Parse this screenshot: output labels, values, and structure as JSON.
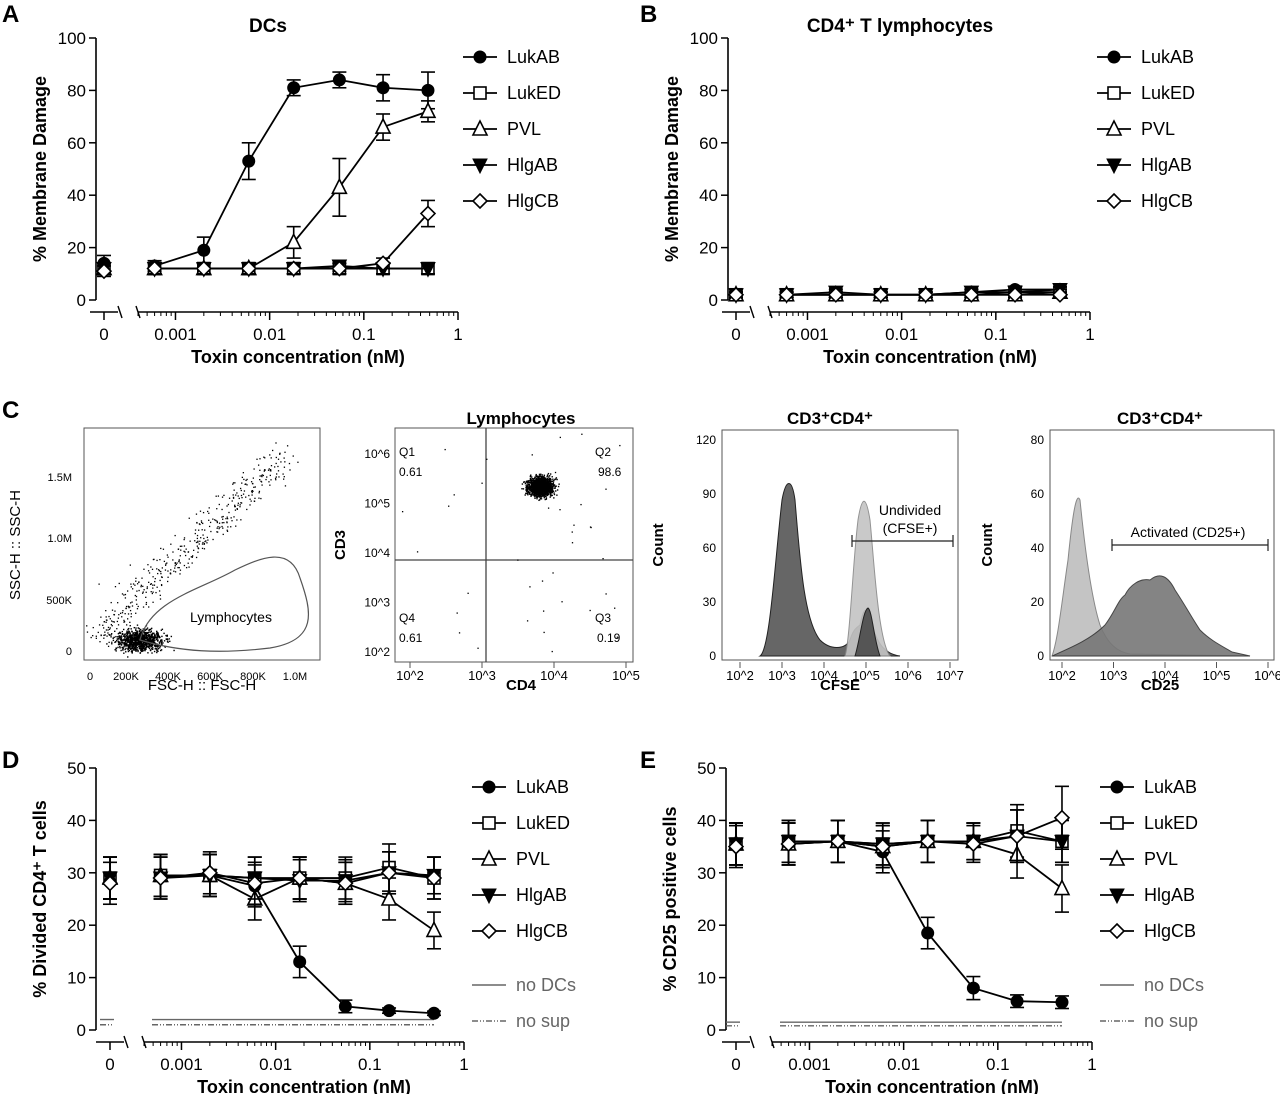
{
  "panel_labels": {
    "A": "A",
    "B": "B",
    "C": "C",
    "D": "D",
    "E": "E"
  },
  "chart_data": [
    {
      "id": "A",
      "type": "line",
      "title": "DCs",
      "xlabel": "Toxin concentration (nM)",
      "ylabel": "% Membrane Damage",
      "xscale": "log with separate zero",
      "ylim": [
        0,
        100
      ],
      "y_ticks": [
        "0",
        "20",
        "40",
        "60",
        "80",
        "100"
      ],
      "x_tick_labels": [
        "0",
        "0.001",
        "0.01",
        "0.1",
        "1"
      ],
      "x": [
        0,
        0.0006,
        0.002,
        0.006,
        0.018,
        0.055,
        0.16,
        0.48
      ],
      "series": [
        {
          "name": "LukAB",
          "marker": "circle-filled",
          "values": [
            14,
            13,
            19,
            53,
            81,
            84,
            81,
            80
          ],
          "errors": [
            3,
            2,
            5,
            7,
            3,
            3,
            5,
            7
          ]
        },
        {
          "name": "LukED",
          "marker": "square-open",
          "values": [
            12,
            12,
            12,
            12,
            12,
            12,
            12,
            12
          ],
          "errors": [
            2,
            2,
            2,
            2,
            2,
            2,
            2,
            2
          ]
        },
        {
          "name": "PVL",
          "marker": "triangle-open",
          "values": [
            12,
            12,
            12,
            12,
            22,
            43,
            66,
            72
          ],
          "errors": [
            2,
            2,
            2,
            2,
            6,
            11,
            5,
            4
          ]
        },
        {
          "name": "HlgAB",
          "marker": "triangle-down-filled",
          "values": [
            12,
            12,
            12,
            12,
            12,
            13,
            12,
            12
          ],
          "errors": [
            2,
            2,
            2,
            2,
            2,
            2,
            2,
            2
          ]
        },
        {
          "name": "HlgCB",
          "marker": "diamond-open",
          "values": [
            11,
            12,
            12,
            12,
            12,
            12,
            14,
            33
          ],
          "errors": [
            2,
            2,
            2,
            2,
            2,
            2,
            2,
            5
          ]
        }
      ],
      "legend": "right"
    },
    {
      "id": "B",
      "type": "line",
      "title": "CD4⁺ T lymphocytes",
      "xlabel": "Toxin concentration (nM)",
      "ylabel": "% Membrane Damage",
      "xscale": "log with separate zero",
      "ylim": [
        0,
        100
      ],
      "y_ticks": [
        "0",
        "20",
        "40",
        "60",
        "80",
        "100"
      ],
      "x_tick_labels": [
        "0",
        "0.001",
        "0.01",
        "0.1",
        "1"
      ],
      "x": [
        0,
        0.0006,
        0.002,
        0.006,
        0.018,
        0.055,
        0.16,
        0.48
      ],
      "series": [
        {
          "name": "LukAB",
          "marker": "circle-filled",
          "values": [
            2,
            2,
            2,
            2,
            2,
            3,
            4,
            4
          ],
          "errors": [
            1,
            1,
            1,
            1,
            1,
            1,
            1,
            1
          ]
        },
        {
          "name": "LukED",
          "marker": "square-open",
          "values": [
            2,
            2,
            2,
            2,
            2,
            2,
            3,
            3
          ],
          "errors": [
            1,
            1,
            1,
            1,
            1,
            1,
            1,
            1
          ]
        },
        {
          "name": "PVL",
          "marker": "triangle-open",
          "values": [
            2,
            2,
            2,
            2,
            2,
            2,
            2,
            3
          ],
          "errors": [
            1,
            1,
            1,
            1,
            1,
            1,
            1,
            1
          ]
        },
        {
          "name": "HlgAB",
          "marker": "triangle-down-filled",
          "values": [
            2,
            2,
            3,
            2,
            2,
            3,
            3,
            4
          ],
          "errors": [
            1,
            1,
            1,
            1,
            1,
            1,
            1,
            1
          ]
        },
        {
          "name": "HlgCB",
          "marker": "diamond-open",
          "values": [
            2,
            2,
            2,
            2,
            2,
            2,
            2,
            2
          ],
          "errors": [
            1,
            1,
            1,
            1,
            1,
            1,
            1,
            1
          ]
        }
      ],
      "legend": "right"
    },
    {
      "id": "C1",
      "type": "scatter",
      "title": "",
      "xlabel": "FSC-H :: FSC-H",
      "ylabel": "SSC-H :: SSC-H",
      "x_ticks": [
        "0",
        "200K",
        "400K",
        "600K",
        "800K",
        "1.0M"
      ],
      "y_ticks": [
        "0",
        "500K",
        "1.0M",
        "1.5M"
      ],
      "gate_label": "Lymphocytes"
    },
    {
      "id": "C2",
      "type": "scatter",
      "title": "Lymphocytes",
      "xlabel": "CD4",
      "ylabel": "CD3",
      "x_ticks": [
        "10^2",
        "10^3",
        "10^4",
        "10^5"
      ],
      "y_ticks": [
        "10^2",
        "10^3",
        "10^4",
        "10^5",
        "10^6"
      ],
      "quadrants": [
        {
          "name": "Q1",
          "value": "0.61"
        },
        {
          "name": "Q2",
          "value": "98.6"
        },
        {
          "name": "Q3",
          "value": "0.19"
        },
        {
          "name": "Q4",
          "value": "0.61"
        }
      ]
    },
    {
      "id": "C3",
      "type": "area",
      "title": "CD3⁺CD4⁺",
      "xlabel": "CFSE",
      "ylabel": "Count",
      "ylim": [
        0,
        120
      ],
      "y_ticks": [
        "0",
        "30",
        "60",
        "90",
        "120"
      ],
      "x_ticks": [
        "10^2",
        "10^3",
        "10^4",
        "10^5",
        "10^6",
        "10^7"
      ],
      "gate_label_1": "Undivided",
      "gate_label_2": "(CFSE+)"
    },
    {
      "id": "C4",
      "type": "area",
      "title": "CD3⁺CD4⁺",
      "xlabel": "CD25",
      "ylabel": "Count",
      "ylim": [
        0,
        80
      ],
      "y_ticks": [
        "0",
        "20",
        "40",
        "60",
        "80"
      ],
      "x_ticks": [
        "10^2",
        "10^3",
        "10^4",
        "10^5",
        "10^6"
      ],
      "gate_label": "Activated (CD25+)"
    },
    {
      "id": "D",
      "type": "line",
      "title": "",
      "xlabel": "Toxin concentration (nM)",
      "ylabel": "% Divided CD4⁺ T cells",
      "xscale": "log with separate zero",
      "ylim": [
        0,
        50
      ],
      "y_ticks": [
        "0",
        "10",
        "20",
        "30",
        "40",
        "50"
      ],
      "x_tick_labels": [
        "0",
        "0.001",
        "0.01",
        "0.1",
        "1"
      ],
      "x": [
        0,
        0.0006,
        0.002,
        0.006,
        0.018,
        0.055,
        0.16,
        0.48
      ],
      "series": [
        {
          "name": "LukAB",
          "marker": "circle-filled",
          "values": [
            29,
            29.5,
            29.5,
            27.5,
            13,
            4.5,
            3.7,
            3.2
          ],
          "errors": [
            4,
            4,
            4,
            4,
            3,
            1.2,
            0.5,
            0.4
          ]
        },
        {
          "name": "LukED",
          "marker": "square-open",
          "values": [
            29,
            29.5,
            29.5,
            29,
            29,
            29,
            31,
            29
          ],
          "errors": [
            4,
            4,
            4,
            4,
            4,
            4,
            4.5,
            4
          ]
        },
        {
          "name": "PVL",
          "marker": "triangle-open",
          "values": [
            29,
            29.5,
            29.5,
            25,
            29,
            28,
            25,
            19
          ],
          "errors": [
            4,
            4,
            4,
            4,
            4,
            4,
            4,
            3.5
          ]
        },
        {
          "name": "HlgAB",
          "marker": "triangle-down-filled",
          "values": [
            29,
            29,
            29.5,
            29,
            28.5,
            28.5,
            30,
            29.5
          ],
          "errors": [
            4,
            4,
            4,
            4,
            4,
            4,
            4,
            3.5
          ]
        },
        {
          "name": "HlgCB",
          "marker": "diamond-open",
          "values": [
            28,
            29,
            30,
            28,
            29,
            28,
            30,
            29
          ],
          "errors": [
            4,
            4,
            4,
            4,
            4,
            4,
            4,
            4
          ]
        }
      ],
      "reference_lines": [
        {
          "name": "no DCs",
          "value": 2
        },
        {
          "name": "no sup",
          "value": 1
        }
      ],
      "legend": "right"
    },
    {
      "id": "E",
      "type": "line",
      "title": "",
      "xlabel": "Toxin concentration (nM)",
      "ylabel": "% CD25 positive cells",
      "xscale": "log with separate zero",
      "ylim": [
        0,
        50
      ],
      "y_ticks": [
        "0",
        "10",
        "20",
        "30",
        "40",
        "50"
      ],
      "x_tick_labels": [
        "0",
        "0.001",
        "0.01",
        "0.1",
        "1"
      ],
      "x": [
        0,
        0.0006,
        0.002,
        0.006,
        0.018,
        0.055,
        0.16,
        0.48
      ],
      "series": [
        {
          "name": "LukAB",
          "marker": "circle-filled",
          "values": [
            35.5,
            35.5,
            36,
            34,
            18.5,
            8,
            5.5,
            5.3
          ],
          "errors": [
            4,
            4,
            4,
            4,
            3,
            2.2,
            1.2,
            1.2
          ]
        },
        {
          "name": "LukED",
          "marker": "square-open",
          "values": [
            35.5,
            36,
            36,
            35.5,
            36,
            36,
            38,
            36
          ],
          "errors": [
            4,
            4,
            4,
            4,
            4,
            3.5,
            5,
            4
          ]
        },
        {
          "name": "PVL",
          "marker": "triangle-open",
          "values": [
            35.5,
            35.5,
            36,
            35,
            36,
            36,
            33.5,
            27
          ],
          "errors": [
            4,
            4,
            4,
            4,
            4,
            3.5,
            4.5,
            4.5
          ]
        },
        {
          "name": "HlgAB",
          "marker": "triangle-down-filled",
          "values": [
            35.5,
            36,
            36,
            35.5,
            36,
            36,
            37,
            36
          ],
          "errors": [
            4,
            4,
            4,
            4,
            4,
            3.5,
            5,
            4
          ]
        },
        {
          "name": "HlgCB",
          "marker": "diamond-open",
          "values": [
            35,
            35.5,
            36,
            35,
            36,
            35.5,
            37,
            40.5
          ],
          "errors": [
            4,
            4,
            4,
            4,
            4,
            3.5,
            5,
            6
          ]
        }
      ],
      "reference_lines": [
        {
          "name": "no DCs",
          "value": 1.5
        },
        {
          "name": "no sup",
          "value": 0.8
        }
      ],
      "legend": "right"
    }
  ]
}
